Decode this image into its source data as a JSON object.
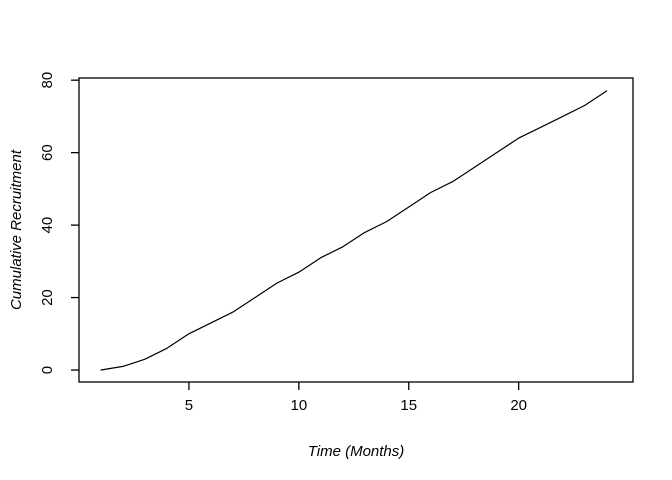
{
  "figure": {
    "background": "#ffffff",
    "plot_border_color": "#000000"
  },
  "chart_data": {
    "type": "line",
    "title": "",
    "xlabel": "Time (Months)",
    "ylabel": "Cumulative Recruitment",
    "x": [
      1,
      2,
      3,
      4,
      5,
      6,
      7,
      8,
      9,
      10,
      11,
      12,
      13,
      14,
      15,
      16,
      17,
      18,
      19,
      20,
      21,
      22,
      23,
      24
    ],
    "values": [
      0,
      1,
      3,
      6,
      10,
      13,
      16,
      20,
      24,
      27,
      31,
      34,
      38,
      41,
      45,
      49,
      52,
      56,
      60,
      64,
      67,
      70,
      73,
      77
    ],
    "series_name": "Cumulative Recruitment",
    "line_color": "#000000",
    "x_ticks": [
      5,
      10,
      15,
      20
    ],
    "y_ticks": [
      0,
      20,
      40,
      60,
      80
    ],
    "x_tick_labels": [
      "5",
      "10",
      "15",
      "20"
    ],
    "y_tick_labels": [
      "0",
      "20",
      "40",
      "60",
      "80"
    ],
    "xlim": [
      0.0,
      25.2
    ],
    "ylim": [
      -3.3,
      80.6
    ],
    "grid": false,
    "legend_position": "none"
  }
}
